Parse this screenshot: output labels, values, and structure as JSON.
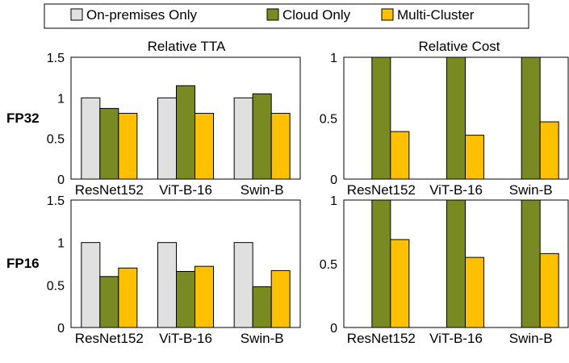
{
  "legend": {
    "items": [
      {
        "label": "On-premises Only",
        "color": "#e0e0e0"
      },
      {
        "label": "Cloud Only",
        "color": "#7a8a22"
      },
      {
        "label": "Multi-Cluster",
        "color": "#ffc000"
      }
    ]
  },
  "row_labels": [
    "FP32",
    "FP16"
  ],
  "col_titles": [
    "Relative TTA",
    "Relative Cost"
  ],
  "chart_data": [
    {
      "type": "bar",
      "title": "Relative TTA",
      "row": "FP32",
      "categories": [
        "ResNet152",
        "ViT-B-16",
        "Swin-B"
      ],
      "series": [
        {
          "name": "On-premises Only",
          "values": [
            1.0,
            1.0,
            1.0
          ]
        },
        {
          "name": "Cloud Only",
          "values": [
            0.87,
            1.15,
            1.05
          ]
        },
        {
          "name": "Multi-Cluster",
          "values": [
            0.81,
            0.81,
            0.81
          ]
        }
      ],
      "ylim": [
        0,
        1.5
      ],
      "yticks": [
        "0",
        "0.5",
        "1",
        "1.5"
      ],
      "grid": false
    },
    {
      "type": "bar",
      "title": "Relative Cost",
      "row": "FP32",
      "categories": [
        "ResNet152",
        "ViT-B-16",
        "Swin-B"
      ],
      "series": [
        {
          "name": "On-premises Only",
          "values": [
            0,
            0,
            0
          ]
        },
        {
          "name": "Cloud Only",
          "values": [
            1.0,
            1.0,
            1.0
          ]
        },
        {
          "name": "Multi-Cluster",
          "values": [
            0.39,
            0.36,
            0.47
          ]
        }
      ],
      "ylim": [
        0,
        1
      ],
      "yticks": [
        "0",
        "0.5",
        "1"
      ],
      "grid": false
    },
    {
      "type": "bar",
      "title": "",
      "row": "FP16",
      "categories": [
        "ResNet152",
        "ViT-B-16",
        "Swin-B"
      ],
      "series": [
        {
          "name": "On-premises Only",
          "values": [
            1.0,
            1.0,
            1.0
          ]
        },
        {
          "name": "Cloud Only",
          "values": [
            0.6,
            0.66,
            0.48
          ]
        },
        {
          "name": "Multi-Cluster",
          "values": [
            0.7,
            0.72,
            0.67
          ]
        }
      ],
      "ylim": [
        0,
        1.5
      ],
      "yticks": [
        "0",
        "0.5",
        "1",
        "1.5"
      ],
      "grid": false
    },
    {
      "type": "bar",
      "title": "",
      "row": "FP16",
      "categories": [
        "ResNet152",
        "ViT-B-16",
        "Swin-B"
      ],
      "series": [
        {
          "name": "On-premises Only",
          "values": [
            0,
            0,
            0
          ]
        },
        {
          "name": "Cloud Only",
          "values": [
            1.0,
            1.0,
            1.0
          ]
        },
        {
          "name": "Multi-Cluster",
          "values": [
            0.69,
            0.55,
            0.58
          ]
        }
      ],
      "ylim": [
        0,
        1
      ],
      "yticks": [
        "0",
        "0.5",
        "1"
      ],
      "grid": false
    }
  ]
}
